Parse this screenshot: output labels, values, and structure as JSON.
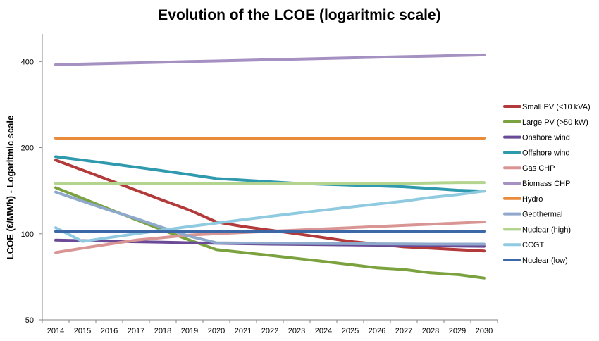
{
  "chart_data": {
    "type": "line",
    "title": "Evolution of the LCOE (logaritmic scale)",
    "xlabel": "",
    "ylabel": "LCOE (€/MWh) - Logaritmic scale",
    "y_scale": "log",
    "ylim": [
      50,
      500
    ],
    "y_ticks": [
      "50",
      "100",
      "200",
      "400"
    ],
    "y_tick_values": [
      50,
      100,
      200,
      400
    ],
    "categories": [
      "2014",
      "2015",
      "2016",
      "2017",
      "2018",
      "2019",
      "2020",
      "2021",
      "2022",
      "2023",
      "2024",
      "2025",
      "2026",
      "2027",
      "2028",
      "2029",
      "2030"
    ],
    "grid": false,
    "legend_position": "right",
    "series": [
      {
        "name": "Small PV (<10 kVA)",
        "color": "#b23a3a",
        "values": [
          181,
          167,
          154,
          142,
          131,
          121,
          110,
          106,
          103,
          100,
          97,
          94,
          92,
          90,
          89,
          88,
          87
        ]
      },
      {
        "name": "Large PV (>50 kW)",
        "color": "#7ba23f",
        "values": [
          145,
          133,
          122,
          112,
          103,
          95,
          88,
          86,
          84,
          82,
          80,
          78,
          76,
          75,
          73,
          72,
          70
        ]
      },
      {
        "name": "Onshore wind",
        "color": "#6a4a96",
        "values": [
          95,
          94.6,
          94.2,
          93.8,
          93.4,
          93,
          92.6,
          92.3,
          92,
          91.8,
          91.6,
          91.4,
          91.2,
          91,
          90.8,
          90.6,
          90.4
        ]
      },
      {
        "name": "Offshore wind",
        "color": "#2f99ae",
        "values": [
          186,
          181,
          176,
          171,
          166,
          161,
          156,
          154,
          152,
          150,
          149,
          148,
          147,
          146,
          144,
          142,
          141
        ]
      },
      {
        "name": "Gas CHP",
        "color": "#d99594",
        "values": [
          86,
          89,
          92,
          95,
          97,
          99,
          100,
          101,
          102,
          103,
          104,
          105,
          106,
          107,
          108,
          109,
          110
        ]
      },
      {
        "name": "Biomass CHP",
        "color": "#a590c2",
        "values": [
          390,
          392,
          394,
          396,
          398,
          400,
          402,
          404,
          406,
          408,
          410,
          412,
          414,
          416,
          418,
          420,
          422
        ]
      },
      {
        "name": "Hydro",
        "color": "#e88b3a",
        "values": [
          216,
          216,
          216,
          216,
          216,
          216,
          216,
          216,
          216,
          216,
          216,
          216,
          216,
          216,
          216,
          216,
          216
        ]
      },
      {
        "name": "Geothermal",
        "color": "#8ea9cc",
        "values": [
          140,
          130,
          121,
          113,
          105,
          98,
          93,
          92.8,
          92.6,
          92.5,
          92.4,
          92.3,
          92.2,
          92.1,
          92,
          92,
          92
        ]
      },
      {
        "name": "Nuclear (high)",
        "color": "#b3d48e",
        "values": [
          150,
          150,
          150,
          150,
          150,
          150,
          150,
          150,
          150,
          150,
          150,
          150,
          150,
          150,
          150.5,
          151,
          151
        ]
      },
      {
        "name": "CCGT",
        "color": "#8fcae0",
        "values": [
          105,
          94,
          97,
          100,
          103,
          106,
          109,
          112,
          115,
          118,
          121,
          124,
          127,
          130,
          134,
          137,
          141
        ]
      },
      {
        "name": "Nuclear (low)",
        "color": "#3c68a8",
        "values": [
          102,
          102,
          102,
          102,
          102,
          102,
          102,
          102,
          102,
          102,
          102,
          102,
          102,
          102,
          102,
          102,
          102
        ]
      }
    ]
  }
}
